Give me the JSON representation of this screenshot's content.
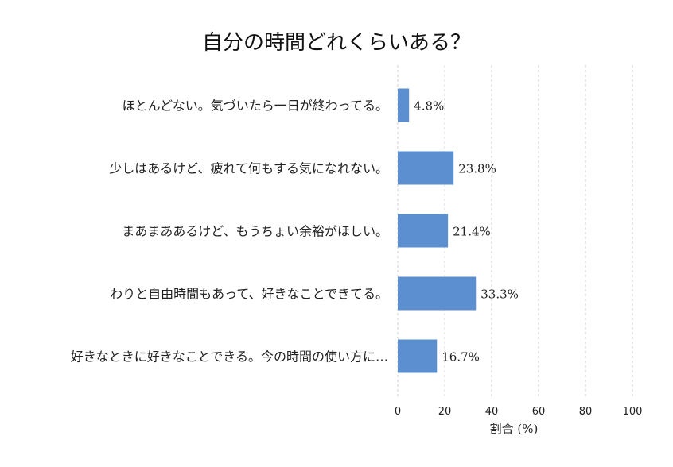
{
  "chart_data": {
    "type": "bar",
    "orientation": "horizontal",
    "title": "自分の時間どれくらいある？",
    "xlabel": "割合 (%)",
    "ylabel": "",
    "xlim": [
      0,
      100
    ],
    "xticks": [
      0,
      20,
      40,
      60,
      80,
      100
    ],
    "grid": "x-dashed",
    "categories": [
      "ほとんどない。気づいたら一日が終わってる。",
      "少しはあるけど、疲れて何もする気になれない。",
      "まあまああるけど、もうちょい余裕がほしい。",
      "わりと自由時間もあって、好きなことできてる。",
      "好きなときに好きなことできる。今の時間の使い方に…"
    ],
    "values": [
      4.8,
      23.8,
      21.4,
      33.3,
      16.7
    ],
    "value_labels": [
      "4.8%",
      "23.8%",
      "21.4%",
      "33.3%",
      "16.7%"
    ],
    "bar_color": "#5b8fd0"
  }
}
